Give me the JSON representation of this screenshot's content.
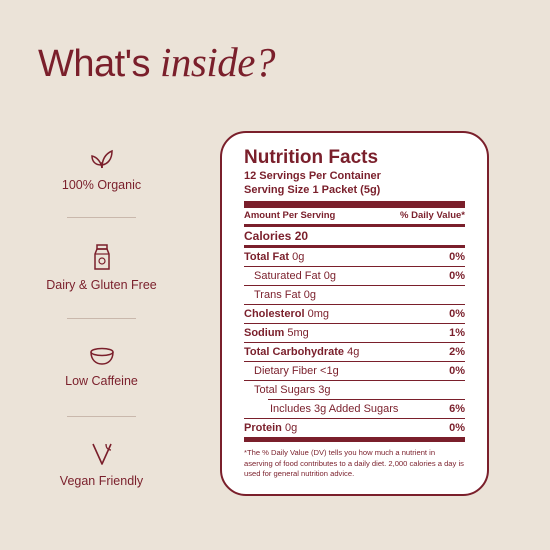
{
  "headline": {
    "lead": "What's",
    "emphasis": "inside?"
  },
  "features": [
    {
      "icon": "leaf-icon",
      "label": "100% Organic"
    },
    {
      "icon": "milk-carton-icon",
      "label": "Dairy & Gluten Free"
    },
    {
      "icon": "bowl-icon",
      "label": "Low Caffeine"
    },
    {
      "icon": "v-mark-icon",
      "label": "Vegan Friendly"
    }
  ],
  "nutrition": {
    "title": "Nutrition Facts",
    "servings": "12 Servings Per Container",
    "serving_size": "Serving Size 1 Packet (5g)",
    "amount_header": "Amount Per Serving",
    "dv_header": "% Daily Value*",
    "calories": "Calories 20",
    "rows": [
      {
        "name": "Total Fat",
        "amount": "0g",
        "dv": "0%"
      },
      {
        "name": "Saturated Fat",
        "amount": "0g",
        "dv": "0%"
      },
      {
        "name": "Trans Fat",
        "amount": "0g",
        "dv": ""
      },
      {
        "name": "Cholesterol",
        "amount": "0mg",
        "dv": "0%"
      },
      {
        "name": "Sodium",
        "amount": "5mg",
        "dv": "1%"
      },
      {
        "name": "Total Carbohydrate",
        "amount": "4g",
        "dv": "2%"
      },
      {
        "name": "Dietary Fiber",
        "amount": "<1g",
        "dv": "0%"
      },
      {
        "name": "Total Sugars",
        "amount": "3g",
        "dv": ""
      },
      {
        "name": "Includes 3g Added Sugars",
        "amount": "",
        "dv": "6%"
      },
      {
        "name": "Protein",
        "amount": "0g",
        "dv": "0%"
      }
    ],
    "footnote": "*The % Daily Value (DV) tells you how much a nutrient in aserving of food contributes to a daily diet. 2,000 calories a day is used for general nutrition advice."
  },
  "colors": {
    "background": "#ebe3d8",
    "accent": "#7a1f2b",
    "card": "#ffffff"
  }
}
